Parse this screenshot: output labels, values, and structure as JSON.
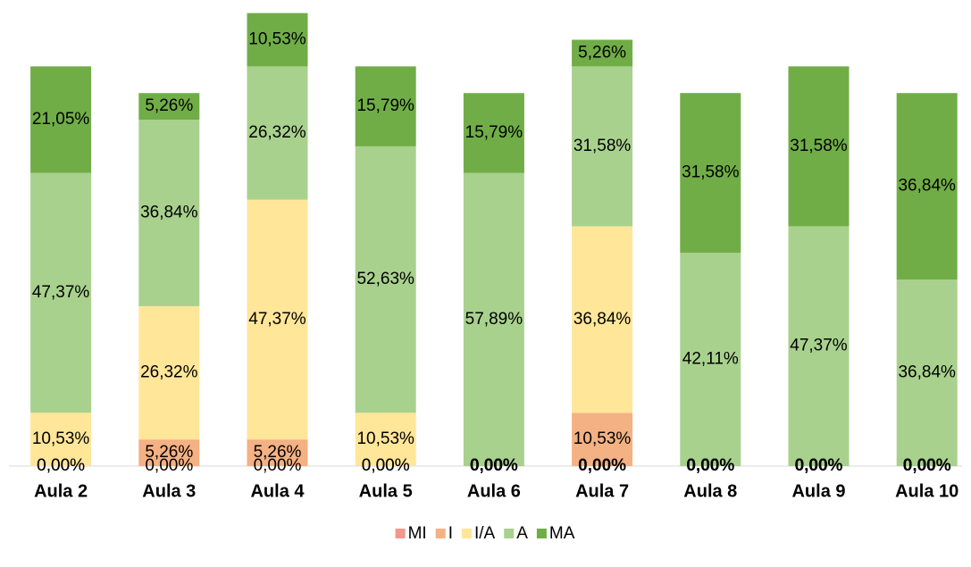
{
  "chart_data": {
    "type": "stacked-bar",
    "categories": [
      "Aula 2",
      "Aula 3",
      "Aula 4",
      "Aula 5",
      "Aula 6",
      "Aula 7",
      "Aula 8",
      "Aula 9",
      "Aula 10"
    ],
    "series": [
      {
        "name": "MI",
        "color": "#f4978e",
        "values": [
          0,
          0,
          0,
          0,
          0,
          0,
          0,
          0,
          0
        ],
        "value_labels": [
          "0,00%",
          "0,00%",
          "0,00%",
          "0,00%",
          "0,00%",
          "0,00%",
          "0,00%",
          "0,00%",
          "0,00%"
        ]
      },
      {
        "name": "I",
        "color": "#f4b183",
        "values": [
          0,
          5.26,
          5.26,
          0,
          0,
          10.53,
          0,
          0,
          0
        ],
        "value_labels": [
          "0,00%",
          "5,26%",
          "5,26%",
          "0,00%",
          "0,00%",
          "10,53%",
          "0,00%",
          "0,00%",
          "0,00%"
        ]
      },
      {
        "name": "I/A",
        "color": "#ffe699",
        "values": [
          10.53,
          26.32,
          47.37,
          10.53,
          0,
          36.84,
          0,
          0,
          0
        ],
        "value_labels": [
          "10,53%",
          "26,32%",
          "47,37%",
          "10,53%",
          "0,00%",
          "36,84%",
          "0,00%",
          "0,00%",
          "0,00%"
        ]
      },
      {
        "name": "A",
        "color": "#a9d18e",
        "values": [
          47.37,
          36.84,
          26.32,
          52.63,
          57.89,
          31.58,
          42.11,
          47.37,
          36.84
        ],
        "value_labels": [
          "47,37%",
          "36,84%",
          "26,32%",
          "52,63%",
          "57,89%",
          "31,58%",
          "42,11%",
          "47,37%",
          "36,84%"
        ]
      },
      {
        "name": "MA",
        "color": "#70ad47",
        "values": [
          21.05,
          5.26,
          10.53,
          15.79,
          15.79,
          5.26,
          31.58,
          31.58,
          36.84
        ],
        "value_labels": [
          "21,05%",
          "5,26%",
          "10,53%",
          "15,79%",
          "15,79%",
          "5,26%",
          "31,58%",
          "31,58%",
          "36,84%"
        ]
      }
    ]
  }
}
